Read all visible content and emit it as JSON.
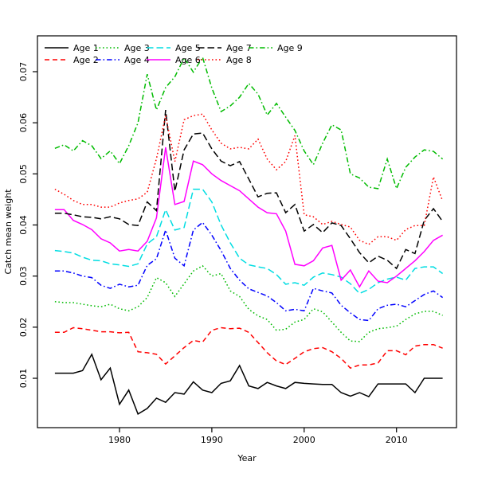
{
  "figure": {
    "background": "#ffffff",
    "border_color": "#000000"
  },
  "axes": {
    "x": {
      "label": "Year",
      "tick_labels": [
        "1980",
        "1990",
        "2000",
        "2010"
      ]
    },
    "y": {
      "label": "Catch mean weight",
      "tick_labels": [
        "0.01",
        "0.02",
        "0.03",
        "0.04",
        "0.05",
        "0.06",
        "0.07"
      ]
    }
  },
  "legend": {
    "position": "upper-left",
    "columns": 5,
    "rows": 2,
    "frame": false,
    "entries": [
      "Age 1",
      "Age 2",
      "Age 3",
      "Age 4",
      "Age 5",
      "Age 6",
      "Age 7",
      "Age 8",
      "Age 9"
    ]
  },
  "chart_data": {
    "type": "line",
    "title": "",
    "xlabel": "Year",
    "ylabel": "Catch mean weight",
    "xlim": [
      1971,
      2017
    ],
    "ylim": [
      0.0,
      0.077
    ],
    "x_ticks": [
      1980,
      1990,
      2000,
      2010
    ],
    "y_ticks": [
      0.01,
      0.02,
      0.03,
      0.04,
      0.05,
      0.06,
      0.07
    ],
    "grid": false,
    "x": [
      1973,
      1974,
      1975,
      1976,
      1977,
      1978,
      1979,
      1980,
      1981,
      1982,
      1983,
      1984,
      1985,
      1986,
      1987,
      1988,
      1989,
      1990,
      1991,
      1992,
      1993,
      1994,
      1995,
      1996,
      1997,
      1998,
      1999,
      2000,
      2001,
      2002,
      2003,
      2004,
      2005,
      2006,
      2007,
      2008,
      2009,
      2010,
      2011,
      2012,
      2013,
      2014,
      2015
    ],
    "series": [
      {
        "name": "Age 1",
        "color": "#000000",
        "linestyle": "solid",
        "values": [
          0.011,
          0.011,
          0.011,
          0.0115,
          0.0147,
          0.0097,
          0.012,
          0.0049,
          0.0077,
          0.003,
          0.0041,
          0.0061,
          0.0053,
          0.0072,
          0.0069,
          0.0093,
          0.0077,
          0.0072,
          0.009,
          0.0095,
          0.0125,
          0.0085,
          0.008,
          0.0092,
          0.0085,
          0.008,
          0.0092,
          0.009,
          0.0089,
          0.0088,
          0.0088,
          0.0072,
          0.0065,
          0.0072,
          0.0064,
          0.0089,
          0.0089,
          0.0089,
          0.0089,
          0.0072,
          0.01,
          0.01,
          0.01
        ]
      },
      {
        "name": "Age 2",
        "color": "#ff0000",
        "linestyle": "dashed",
        "values": [
          0.019,
          0.019,
          0.0199,
          0.0197,
          0.0194,
          0.0191,
          0.0191,
          0.0189,
          0.019,
          0.0152,
          0.015,
          0.0147,
          0.0128,
          0.0144,
          0.016,
          0.0174,
          0.0171,
          0.0194,
          0.0199,
          0.0197,
          0.0198,
          0.019,
          0.017,
          0.015,
          0.0134,
          0.0127,
          0.0139,
          0.0152,
          0.0158,
          0.016,
          0.0152,
          0.0139,
          0.012,
          0.0126,
          0.0126,
          0.013,
          0.0154,
          0.0154,
          0.0146,
          0.0163,
          0.0166,
          0.0166,
          0.0159
        ]
      },
      {
        "name": "Age 3",
        "color": "#00bb00",
        "linestyle": "dotted",
        "values": [
          0.025,
          0.0248,
          0.0248,
          0.0245,
          0.0242,
          0.024,
          0.0245,
          0.0236,
          0.0232,
          0.024,
          0.0258,
          0.0297,
          0.0287,
          0.026,
          0.0285,
          0.031,
          0.032,
          0.03,
          0.0305,
          0.0271,
          0.026,
          0.0235,
          0.0222,
          0.0215,
          0.0194,
          0.0196,
          0.021,
          0.0215,
          0.0236,
          0.023,
          0.021,
          0.019,
          0.0173,
          0.0172,
          0.019,
          0.0197,
          0.0199,
          0.0202,
          0.0215,
          0.0226,
          0.0231,
          0.0231,
          0.0223
        ]
      },
      {
        "name": "Age 4",
        "color": "#0000ff",
        "linestyle": "dashdot",
        "values": [
          0.031,
          0.031,
          0.0306,
          0.03,
          0.0297,
          0.0282,
          0.0276,
          0.0284,
          0.0279,
          0.0282,
          0.0321,
          0.0334,
          0.039,
          0.0335,
          0.032,
          0.039,
          0.0405,
          0.038,
          0.035,
          0.0315,
          0.0292,
          0.0275,
          0.0268,
          0.0261,
          0.0248,
          0.0232,
          0.0235,
          0.0232,
          0.0276,
          0.0271,
          0.0267,
          0.0243,
          0.0228,
          0.0215,
          0.0213,
          0.0236,
          0.0243,
          0.0245,
          0.024,
          0.0252,
          0.0264,
          0.0271,
          0.0258
        ]
      },
      {
        "name": "Age 5",
        "color": "#00dde2",
        "linestyle": "longdash",
        "values": [
          0.035,
          0.0348,
          0.0345,
          0.0337,
          0.0331,
          0.033,
          0.0324,
          0.0322,
          0.0319,
          0.0324,
          0.0363,
          0.0377,
          0.043,
          0.039,
          0.0395,
          0.047,
          0.047,
          0.0445,
          0.04,
          0.0365,
          0.0335,
          0.0322,
          0.0318,
          0.0315,
          0.0303,
          0.0284,
          0.0287,
          0.0282,
          0.0298,
          0.0306,
          0.0303,
          0.0298,
          0.0285,
          0.0266,
          0.0274,
          0.0287,
          0.0294,
          0.0298,
          0.0292,
          0.0315,
          0.0318,
          0.0318,
          0.0305
        ]
      },
      {
        "name": "Age 6",
        "color": "#ff00ff",
        "linestyle": "solid",
        "values": [
          0.043,
          0.043,
          0.0409,
          0.0401,
          0.0391,
          0.0373,
          0.0365,
          0.0349,
          0.0352,
          0.0349,
          0.0368,
          0.0414,
          0.0552,
          0.044,
          0.0446,
          0.0525,
          0.0518,
          0.05,
          0.0487,
          0.0477,
          0.0467,
          0.0451,
          0.0435,
          0.0424,
          0.0422,
          0.0388,
          0.0323,
          0.032,
          0.033,
          0.0355,
          0.036,
          0.0292,
          0.0312,
          0.0279,
          0.031,
          0.029,
          0.0287,
          0.03,
          0.0315,
          0.033,
          0.0348,
          0.037,
          0.038
        ]
      },
      {
        "name": "Age 7",
        "color": "#000000",
        "linestyle": "longdash",
        "values": [
          0.0423,
          0.0423,
          0.042,
          0.0416,
          0.0415,
          0.0412,
          0.0416,
          0.0412,
          0.0401,
          0.0399,
          0.0445,
          0.0428,
          0.0625,
          0.0466,
          0.0547,
          0.0578,
          0.058,
          0.0549,
          0.0525,
          0.0516,
          0.0524,
          0.049,
          0.0455,
          0.0462,
          0.0463,
          0.0424,
          0.044,
          0.0388,
          0.0401,
          0.0385,
          0.0404,
          0.0399,
          0.0373,
          0.0346,
          0.0326,
          0.0339,
          0.0331,
          0.0315,
          0.0352,
          0.0344,
          0.0409,
          0.0432,
          0.0407
        ]
      },
      {
        "name": "Age 8",
        "color": "#ff0000",
        "linestyle": "dotted",
        "values": [
          0.047,
          0.046,
          0.0448,
          0.044,
          0.044,
          0.0435,
          0.0435,
          0.0443,
          0.0448,
          0.0451,
          0.0464,
          0.053,
          0.0614,
          0.0524,
          0.0606,
          0.0614,
          0.0617,
          0.0586,
          0.056,
          0.0549,
          0.0552,
          0.0549,
          0.0568,
          0.0529,
          0.0508,
          0.0524,
          0.0575,
          0.042,
          0.0416,
          0.0401,
          0.0407,
          0.0401,
          0.0396,
          0.037,
          0.0362,
          0.0377,
          0.0377,
          0.037,
          0.0391,
          0.0399,
          0.0399,
          0.0494,
          0.0447
        ]
      },
      {
        "name": "Age 9",
        "color": "#00bb00",
        "linestyle": "dashdot",
        "values": [
          0.055,
          0.0557,
          0.0545,
          0.0565,
          0.0555,
          0.053,
          0.0545,
          0.052,
          0.0555,
          0.06,
          0.0695,
          0.0625,
          0.0669,
          0.069,
          0.0727,
          0.0699,
          0.0728,
          0.0668,
          0.0622,
          0.0633,
          0.065,
          0.0677,
          0.0656,
          0.0615,
          0.0638,
          0.0611,
          0.0585,
          0.0545,
          0.0518,
          0.056,
          0.0596,
          0.0586,
          0.05,
          0.0492,
          0.0474,
          0.0471,
          0.0529,
          0.0471,
          0.0513,
          0.0533,
          0.0547,
          0.0544,
          0.0529
        ]
      }
    ]
  }
}
